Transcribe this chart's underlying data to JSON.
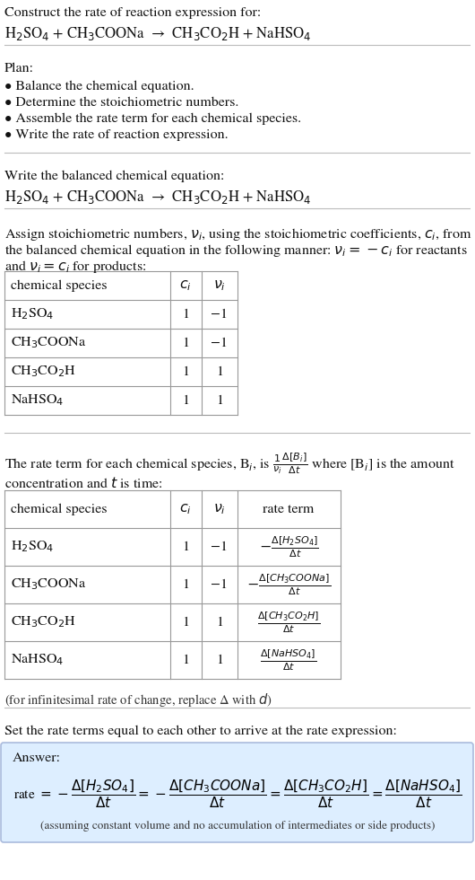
{
  "bg_color": "#ffffff",
  "title_line1": "Construct the rate of reaction expression for:",
  "reaction_eq": "H$_2$SO$_4$ + CH$_3$COONa  →  CH$_3$CO$_2$H + NaHSO$_4$",
  "plan_header": "Plan:",
  "plan_items": [
    "• Balance the chemical equation.",
    "• Determine the stoichiometric numbers.",
    "• Assemble the rate term for each chemical species.",
    "• Write the rate of reaction expression."
  ],
  "balanced_header": "Write the balanced chemical equation:",
  "balanced_eq": "H$_2$SO$_4$ + CH$_3$COONa  →  CH$_3$CO$_2$H + NaHSO$_4$",
  "assign_text1": "Assign stoichiometric numbers, $\\nu_i$, using the stoichiometric coefficients, $c_i$, from",
  "assign_text2": "the balanced chemical equation in the following manner: $\\nu_i = -c_i$ for reactants",
  "assign_text3": "and $\\nu_i = c_i$ for products:",
  "table1_headers": [
    "chemical species",
    "$c_i$",
    "$\\nu_i$"
  ],
  "table1_rows": [
    [
      "H$_2$SO$_4$",
      "1",
      "−1"
    ],
    [
      "CH$_3$COONa",
      "1",
      "−1"
    ],
    [
      "CH$_3$CO$_2$H",
      "1",
      "1"
    ],
    [
      "NaHSO$_4$",
      "1",
      "1"
    ]
  ],
  "rate_text1": "The rate term for each chemical species, B$_i$, is $\\frac{1}{\\nu_i}\\frac{\\Delta[B_i]}{\\Delta t}$ where [B$_i$] is the amount",
  "rate_text2": "concentration and $t$ is time:",
  "table2_headers": [
    "chemical species",
    "$c_i$",
    "$\\nu_i$",
    "rate term"
  ],
  "table2_rows": [
    [
      "H$_2$SO$_4$",
      "1",
      "−1",
      "$-\\frac{\\Delta[H_2SO_4]}{\\Delta t}$"
    ],
    [
      "CH$_3$COONa",
      "1",
      "−1",
      "$-\\frac{\\Delta[CH_3COONa]}{\\Delta t}$"
    ],
    [
      "CH$_3$CO$_2$H",
      "1",
      "1",
      "$\\frac{\\Delta[CH_3CO_2H]}{\\Delta t}$"
    ],
    [
      "NaHSO$_4$",
      "1",
      "1",
      "$\\frac{\\Delta[NaHSO_4]}{\\Delta t}$"
    ]
  ],
  "infinitesimal_note": "(for infinitesimal rate of change, replace Δ with $d$)",
  "set_rate_text": "Set the rate terms equal to each other to arrive at the rate expression:",
  "answer_label": "Answer:",
  "answer_box_color": "#ddeeff",
  "answer_border_color": "#aabbdd",
  "rate_expression": "rate $= -\\dfrac{\\Delta[H_2SO_4]}{\\Delta t} = -\\dfrac{\\Delta[CH_3COONa]}{\\Delta t} = \\dfrac{\\Delta[CH_3CO_2H]}{\\Delta t} = \\dfrac{\\Delta[NaHSO_4]}{\\Delta t}$",
  "assuming_note": "(assuming constant volume and no accumulation of intermediates or side products)"
}
